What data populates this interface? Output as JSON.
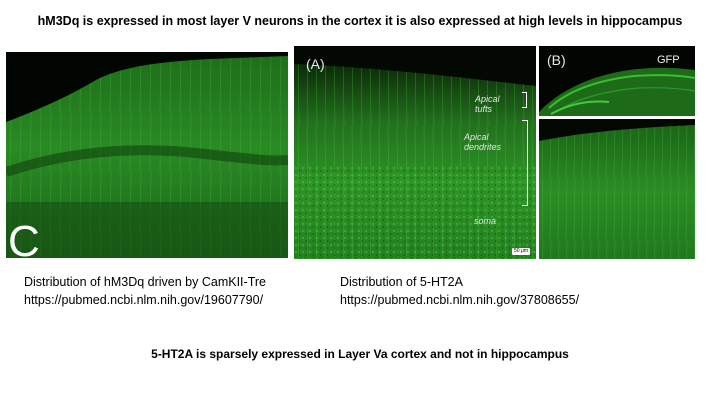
{
  "title": "hM3Dq is expressed in most layer V neurons in the cortex it is also expressed at high levels in hippocampus",
  "panels": {
    "c": {
      "label": "C"
    },
    "a": {
      "label": "(A)",
      "apical_tufts": [
        "Apical",
        "tufts"
      ],
      "apical_dendrites": [
        "Apical",
        "dendrites"
      ],
      "soma": "soma",
      "scale_bar": "50 μm"
    },
    "b": {
      "label": "(B)",
      "marker": "GFP"
    }
  },
  "captions": {
    "left": {
      "line1": "Distribution of hM3Dq driven by CamKII-Tre",
      "line2": "https://pubmed.ncbi.nlm.nih.gov/19607790/"
    },
    "right": {
      "line1": "Distribution of 5-HT2A",
      "line2": "https://pubmed.ncbi.nlm.nih.gov/37808655/"
    }
  },
  "footer": "5-HT2A is sparsely expressed in Layer Va cortex and not in hippocampus",
  "colors": {
    "background": "#ffffff",
    "fluorescence": "#2fa82a",
    "panel_dark": "#061205"
  }
}
